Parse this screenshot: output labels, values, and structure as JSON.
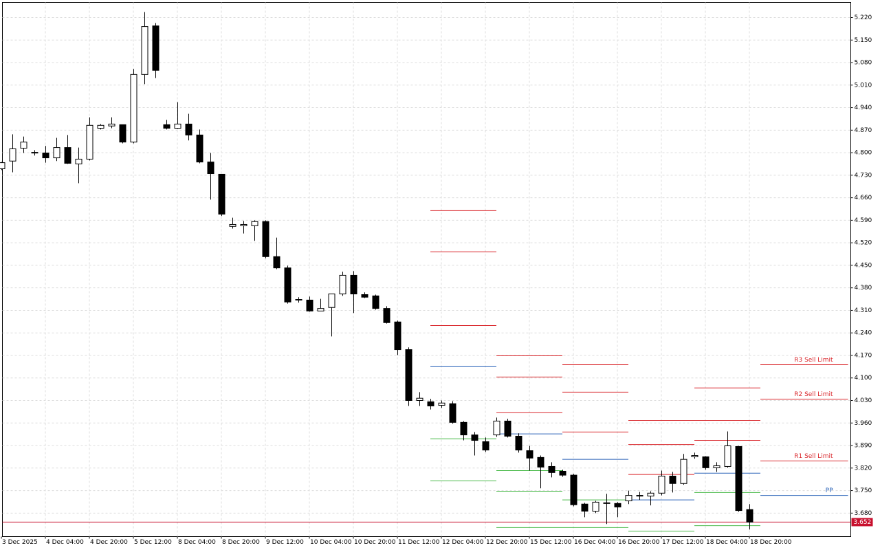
{
  "chart_data": {
    "type": "candlestick",
    "categories": [
      "3 Dec 2025",
      null,
      null,
      null,
      "4 Dec 04:00",
      null,
      null,
      null,
      "4 Dec 20:00",
      null,
      null,
      null,
      "5 Dec 12:00",
      null,
      null,
      null,
      "8 Dec 04:00",
      null,
      null,
      null,
      "8 Dec 20:00",
      null,
      null,
      null,
      "9 Dec 12:00",
      null,
      null,
      null,
      "10 Dec 04:00",
      null,
      null,
      null,
      "10 Dec 20:00",
      null,
      null,
      null,
      "11 Dec 12:00",
      null,
      null,
      null,
      "12 Dec 04:00",
      null,
      null,
      null,
      "12 Dec 20:00",
      null,
      null,
      null,
      "15 Dec 12:00",
      null,
      null,
      null,
      "16 Dec 04:00",
      null,
      null,
      null,
      "16 Dec 20:00",
      null,
      null,
      null,
      "17 Dec 12:00",
      null,
      null,
      null,
      "18 Dec 04:00",
      null,
      null,
      null,
      "18 Dec 20:00"
    ],
    "open": [
      4.75,
      4.774,
      4.814,
      4.799,
      4.799,
      4.784,
      4.816,
      4.765,
      4.78,
      4.876,
      4.883,
      4.887,
      4.833,
      5.043,
      5.194,
      4.887,
      4.876,
      4.889,
      4.855,
      4.771,
      4.733,
      4.571,
      4.573,
      4.573,
      4.586,
      4.477,
      4.442,
      4.342,
      4.342,
      4.308,
      4.319,
      4.361,
      4.419,
      4.359,
      4.355,
      4.316,
      4.274,
      4.188,
      4.03,
      4.026,
      4.015,
      4.02,
      3.962,
      3.923,
      3.902,
      3.923,
      3.966,
      3.919,
      3.874,
      3.853,
      3.825,
      3.81,
      3.798,
      3.708,
      3.686,
      3.712,
      3.71,
      3.718,
      3.733,
      3.733,
      3.742,
      3.795,
      3.772,
      3.855,
      3.855,
      3.821,
      3.825,
      3.887,
      3.691
    ],
    "high": [
      4.771,
      4.857,
      4.85,
      4.808,
      4.821,
      4.846,
      4.855,
      4.816,
      4.91,
      4.889,
      4.91,
      4.887,
      5.06,
      5.237,
      5.203,
      4.902,
      4.957,
      4.921,
      4.872,
      4.799,
      4.733,
      4.598,
      4.588,
      4.59,
      4.59,
      4.536,
      4.449,
      4.351,
      4.353,
      4.346,
      4.361,
      4.43,
      4.432,
      4.366,
      4.359,
      4.323,
      4.278,
      4.195,
      4.056,
      4.035,
      4.03,
      4.028,
      3.966,
      3.932,
      3.915,
      3.977,
      3.973,
      3.928,
      3.889,
      3.859,
      3.838,
      3.815,
      3.802,
      3.712,
      3.718,
      3.74,
      3.714,
      3.75,
      3.746,
      3.748,
      3.812,
      3.808,
      3.864,
      3.868,
      3.857,
      3.838,
      3.934,
      3.889,
      3.708
    ],
    "low": [
      4.746,
      4.739,
      4.799,
      4.791,
      4.769,
      4.774,
      4.765,
      4.705,
      4.776,
      4.872,
      4.876,
      4.829,
      4.829,
      5.013,
      5.032,
      4.872,
      4.874,
      4.838,
      4.767,
      4.654,
      4.603,
      4.564,
      4.549,
      4.526,
      4.472,
      4.438,
      4.331,
      4.334,
      4.306,
      4.308,
      4.229,
      4.355,
      4.302,
      4.348,
      4.312,
      4.269,
      4.171,
      4.013,
      4.013,
      4.002,
      4.007,
      3.958,
      3.906,
      3.859,
      3.87,
      3.917,
      3.915,
      3.868,
      3.812,
      3.757,
      3.791,
      3.793,
      3.701,
      3.667,
      3.68,
      3.646,
      3.667,
      3.708,
      3.721,
      3.704,
      3.735,
      3.744,
      3.768,
      3.849,
      3.815,
      3.808,
      3.821,
      3.684,
      3.629
    ],
    "close": [
      4.769,
      4.812,
      4.833,
      4.801,
      4.784,
      4.816,
      4.767,
      4.78,
      4.885,
      4.885,
      4.889,
      4.833,
      5.043,
      5.192,
      5.056,
      4.876,
      4.889,
      4.855,
      4.771,
      4.735,
      4.609,
      4.577,
      4.577,
      4.586,
      4.477,
      4.442,
      4.336,
      4.344,
      4.308,
      4.316,
      4.361,
      4.419,
      4.361,
      4.351,
      4.316,
      4.272,
      4.188,
      4.03,
      4.037,
      4.013,
      4.022,
      3.962,
      3.923,
      3.906,
      3.876,
      3.966,
      3.919,
      3.876,
      3.851,
      3.823,
      3.806,
      3.798,
      3.706,
      3.686,
      3.714,
      3.71,
      3.699,
      3.735,
      3.735,
      3.742,
      3.795,
      3.772,
      3.847,
      3.859,
      3.821,
      3.827,
      3.889,
      3.688,
      3.652
    ],
    "up_color": "#ffffff",
    "down_color": "#000000",
    "ylim": [
      3.607,
      5.267
    ],
    "yticks": [
      {
        "value": 5.22,
        "label": "5.220"
      },
      {
        "value": 5.15,
        "label": "5.150"
      },
      {
        "value": 5.08,
        "label": "5.080"
      },
      {
        "value": 5.01,
        "label": "5.010"
      },
      {
        "value": 4.94,
        "label": "4.940"
      },
      {
        "value": 4.87,
        "label": "4.870"
      },
      {
        "value": 4.8,
        "label": "4.800"
      },
      {
        "value": 4.73,
        "label": "4.730"
      },
      {
        "value": 4.66,
        "label": "4.660"
      },
      {
        "value": 4.59,
        "label": "4.590"
      },
      {
        "value": 4.52,
        "label": "4.520"
      },
      {
        "value": 4.45,
        "label": "4.450"
      },
      {
        "value": 4.38,
        "label": "4.380"
      },
      {
        "value": 4.31,
        "label": "4.310"
      },
      {
        "value": 4.24,
        "label": "4.240"
      },
      {
        "value": 4.17,
        "label": "4.170"
      },
      {
        "value": 4.1,
        "label": "4.100"
      },
      {
        "value": 4.03,
        "label": "4.030"
      },
      {
        "value": 3.96,
        "label": "3.960"
      },
      {
        "value": 3.89,
        "label": "3.890"
      },
      {
        "value": 3.82,
        "label": "3.820"
      },
      {
        "value": 3.75,
        "label": "3.750"
      },
      {
        "value": 3.68,
        "label": "3.680"
      }
    ],
    "grid": true,
    "current_price": 3.652,
    "current_color": "#c8102e",
    "pivots": [
      {
        "levels": [
          {
            "value": 4.62,
            "color": "#d9262b"
          },
          {
            "value": 4.492,
            "color": "#d9262b"
          },
          {
            "value": 4.263,
            "color": "#d9262b"
          },
          {
            "value": 4.135,
            "color": "#2a62b8"
          },
          {
            "value": 3.911,
            "color": "#45b845"
          },
          {
            "value": 3.78,
            "color": "#45b845"
          }
        ]
      },
      {
        "levels": [
          {
            "value": 4.169,
            "color": "#d9262b"
          },
          {
            "value": 4.103,
            "color": "#d9262b"
          },
          {
            "value": 3.992,
            "color": "#d9262b"
          },
          {
            "value": 3.926,
            "color": "#2a62b8"
          },
          {
            "value": 3.812,
            "color": "#45b845"
          },
          {
            "value": 3.748,
            "color": "#45b845"
          },
          {
            "value": 3.635,
            "color": "#45b845"
          }
        ]
      },
      {
        "levels": [
          {
            "value": 4.141,
            "color": "#d9262b"
          },
          {
            "value": 4.056,
            "color": "#d9262b"
          },
          {
            "value": 3.932,
            "color": "#d9262b"
          },
          {
            "value": 3.847,
            "color": "#2a62b8"
          },
          {
            "value": 3.721,
            "color": "#45b845"
          },
          {
            "value": 3.635,
            "color": "#45b845"
          }
        ]
      },
      {
        "levels": [
          {
            "value": 3.968,
            "color": "#d9262b"
          },
          {
            "value": 3.893,
            "color": "#d9262b"
          },
          {
            "value": 3.8,
            "color": "#d9262b"
          },
          {
            "value": 3.721,
            "color": "#2a62b8"
          },
          {
            "value": 3.624,
            "color": "#45b845"
          }
        ]
      },
      {
        "levels": [
          {
            "value": 4.069,
            "color": "#d9262b"
          },
          {
            "value": 3.968,
            "color": "#d9262b"
          },
          {
            "value": 3.906,
            "color": "#d9262b"
          },
          {
            "value": 3.804,
            "color": "#2a62b8"
          },
          {
            "value": 3.744,
            "color": "#45b845"
          },
          {
            "value": 3.641,
            "color": "#45b845"
          }
        ]
      },
      {
        "levels": [
          {
            "value": 4.141,
            "color": "#d9262b",
            "label": "R3 Sell Limit"
          },
          {
            "value": 4.034,
            "color": "#d9262b",
            "label": "R2 Sell Limit"
          },
          {
            "value": 3.842,
            "color": "#d9262b",
            "label": "R1 Sell Limit"
          },
          {
            "value": 3.735,
            "color": "#2a62b8",
            "label": "PP"
          }
        ]
      }
    ]
  }
}
